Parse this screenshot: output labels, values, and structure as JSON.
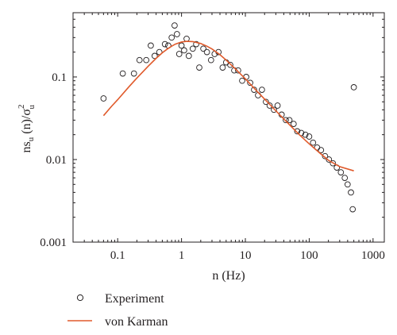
{
  "chart_data": {
    "type": "scatter",
    "xscale": "log",
    "yscale": "log",
    "xlim": [
      0.02,
      1500
    ],
    "ylim": [
      0.001,
      0.6
    ],
    "xticks": [
      0.1,
      1,
      10,
      100,
      1000
    ],
    "xtick_labels": [
      "0.1",
      "1",
      "10",
      "100",
      "1000"
    ],
    "yticks": [
      0.001,
      0.01,
      0.1
    ],
    "ytick_labels": [
      "0.001",
      "0.01",
      "0.1"
    ],
    "xlabel": "n (Hz)",
    "ylabel": {
      "base": "ns",
      "sub1": "u",
      "mid": " (n)/σ",
      "sup": "2",
      "sub2": "u"
    },
    "grid": false,
    "legend_position": "bottom-left, below plot",
    "series": [
      {
        "name": "Experiment",
        "kind": "scatter",
        "marker": "open-circle",
        "color": "#231f20",
        "x": [
          0.06,
          0.12,
          0.18,
          0.22,
          0.28,
          0.33,
          0.38,
          0.45,
          0.55,
          0.62,
          0.7,
          0.78,
          0.85,
          0.92,
          1.0,
          1.1,
          1.2,
          1.3,
          1.5,
          1.7,
          1.9,
          2.2,
          2.5,
          2.9,
          3.3,
          3.8,
          4.4,
          5.0,
          5.8,
          6.7,
          7.7,
          8.9,
          10.3,
          11.9,
          13.7,
          15.8,
          18.2,
          21,
          24,
          28,
          32,
          37,
          43,
          49,
          57,
          65,
          75,
          87,
          100,
          115,
          133,
          153,
          177,
          204,
          235,
          271,
          313,
          360,
          400,
          450,
          480,
          500
        ],
        "y": [
          0.055,
          0.11,
          0.11,
          0.16,
          0.16,
          0.24,
          0.18,
          0.2,
          0.25,
          0.24,
          0.3,
          0.42,
          0.33,
          0.19,
          0.24,
          0.21,
          0.29,
          0.18,
          0.22,
          0.25,
          0.13,
          0.22,
          0.2,
          0.16,
          0.19,
          0.2,
          0.13,
          0.15,
          0.14,
          0.12,
          0.12,
          0.09,
          0.1,
          0.085,
          0.07,
          0.06,
          0.07,
          0.05,
          0.045,
          0.04,
          0.045,
          0.035,
          0.03,
          0.03,
          0.027,
          0.022,
          0.021,
          0.02,
          0.019,
          0.016,
          0.014,
          0.013,
          0.011,
          0.01,
          0.009,
          0.008,
          0.007,
          0.006,
          0.005,
          0.004,
          0.0025,
          0.075
        ]
      },
      {
        "name": "von Karman",
        "kind": "line",
        "color": "#e05a2b",
        "x": [
          0.06,
          0.08,
          0.1,
          0.15,
          0.2,
          0.3,
          0.4,
          0.5,
          0.6,
          0.7,
          0.8,
          1,
          1.2,
          1.5,
          2,
          2.5,
          3,
          4,
          5,
          7,
          10,
          15,
          20,
          30,
          50,
          70,
          100,
          150,
          200,
          300,
          500
        ],
        "y": [
          0.034,
          0.044,
          0.053,
          0.076,
          0.097,
          0.135,
          0.168,
          0.196,
          0.218,
          0.236,
          0.25,
          0.265,
          0.27,
          0.268,
          0.254,
          0.236,
          0.218,
          0.186,
          0.16,
          0.125,
          0.095,
          0.068,
          0.054,
          0.039,
          0.026,
          0.02,
          0.0155,
          0.0118,
          0.0098,
          0.0082,
          0.0073
        ]
      }
    ]
  }
}
